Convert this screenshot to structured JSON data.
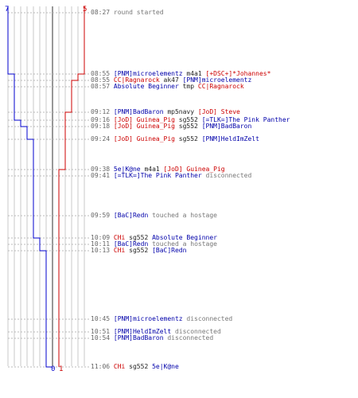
{
  "teams": {
    "blue": {
      "color": "#0000cc",
      "start_score": "7",
      "end_score": "0"
    },
    "red": {
      "color": "#cc0000",
      "start_score": "5",
      "end_score": "1"
    }
  },
  "events": [
    {
      "time": "08:27",
      "parts": [
        {
          "text": "round started",
          "c": "grey"
        }
      ]
    },
    {
      "time": "08:55",
      "parts": [
        {
          "text": "[PNM]microelementz",
          "c": "blue"
        },
        {
          "text": " m4a1 ",
          "c": "blk"
        },
        {
          "text": "[+DSC+]*Johannes*",
          "c": "red"
        }
      ]
    },
    {
      "time": "08:55",
      "parts": [
        {
          "text": "CC|Ragnarock",
          "c": "red"
        },
        {
          "text": " ak47 ",
          "c": "blk"
        },
        {
          "text": "[PNM]microelementz",
          "c": "blue"
        }
      ]
    },
    {
      "time": "08:57",
      "parts": [
        {
          "text": "Absolute Beginner",
          "c": "blue"
        },
        {
          "text": " tmp ",
          "c": "blk"
        },
        {
          "text": "CC|Ragnarock",
          "c": "red"
        }
      ]
    },
    {
      "time": "09:12",
      "parts": [
        {
          "text": "[PNM]BadBaron",
          "c": "blue"
        },
        {
          "text": " mp5navy ",
          "c": "blk"
        },
        {
          "text": "[JoD] Steve",
          "c": "red"
        }
      ]
    },
    {
      "time": "09:16",
      "parts": [
        {
          "text": "[JoD] Guinea_Pig",
          "c": "red"
        },
        {
          "text": " sg552 ",
          "c": "blk"
        },
        {
          "text": "[=TLK=]The Pink Panther",
          "c": "blue"
        }
      ]
    },
    {
      "time": "09:18",
      "parts": [
        {
          "text": "[JoD] Guinea_Pig",
          "c": "red"
        },
        {
          "text": " sg552 ",
          "c": "blk"
        },
        {
          "text": "[PNM]BadBaron",
          "c": "blue"
        }
      ]
    },
    {
      "time": "09:24",
      "parts": [
        {
          "text": "[JoD] Guinea_Pig",
          "c": "red"
        },
        {
          "text": " sg552 ",
          "c": "blk"
        },
        {
          "text": "[PNM]HeldImZelt",
          "c": "blue"
        }
      ]
    },
    {
      "time": "09:38",
      "parts": [
        {
          "text": "5e|K@ne",
          "c": "blue"
        },
        {
          "text": " m4a1 ",
          "c": "blk"
        },
        {
          "text": "[JoD] Guinea_Pig",
          "c": "red"
        }
      ]
    },
    {
      "time": "09:41",
      "parts": [
        {
          "text": "[=TLK=]The Pink Panther",
          "c": "blue"
        },
        {
          "text": " disconnected",
          "c": "grey"
        }
      ]
    },
    {
      "time": "09:59",
      "parts": [
        {
          "text": "[BaC]Redn",
          "c": "blue"
        },
        {
          "text": " touched a hostage",
          "c": "grey"
        }
      ]
    },
    {
      "time": "10:09",
      "parts": [
        {
          "text": "CHi",
          "c": "red"
        },
        {
          "text": " sg552 ",
          "c": "blk"
        },
        {
          "text": "Absolute Beginner",
          "c": "blue"
        }
      ]
    },
    {
      "time": "10:11",
      "parts": [
        {
          "text": "[BaC]Redn",
          "c": "blue"
        },
        {
          "text": " touched a hostage",
          "c": "grey"
        }
      ]
    },
    {
      "time": "10:13",
      "parts": [
        {
          "text": "CHi",
          "c": "red"
        },
        {
          "text": " sg552 ",
          "c": "blk"
        },
        {
          "text": "[BaC]Redn",
          "c": "blue"
        }
      ]
    },
    {
      "time": "10:45",
      "parts": [
        {
          "text": "[PNM]microelementz",
          "c": "blue"
        },
        {
          "text": " disconnected",
          "c": "grey"
        }
      ]
    },
    {
      "time": "10:51",
      "parts": [
        {
          "text": "[PNM]HeldImZelt",
          "c": "blue"
        },
        {
          "text": " disconnected",
          "c": "grey"
        }
      ]
    },
    {
      "time": "10:54",
      "parts": [
        {
          "text": "[PNM]BadBaron",
          "c": "blue"
        },
        {
          "text": " disconnected",
          "c": "grey"
        }
      ]
    },
    {
      "time": "11:06",
      "parts": [
        {
          "text": "CHi",
          "c": "red"
        },
        {
          "text": " sg552 ",
          "c": "blk"
        },
        {
          "text": "5e|K@ne",
          "c": "blue"
        }
      ]
    }
  ]
}
